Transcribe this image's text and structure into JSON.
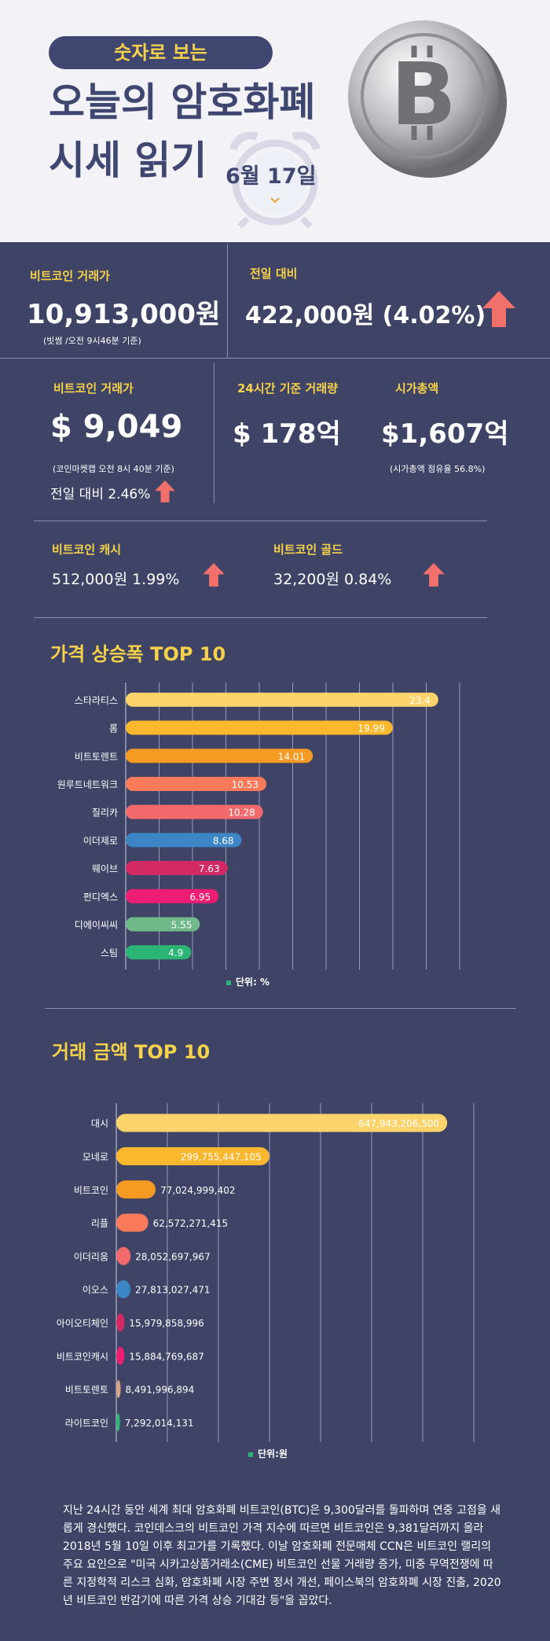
{
  "header": {
    "pill": "숫자로 보는",
    "title_line1": "오늘의 암호화폐",
    "title_line2": "시세 읽기",
    "date": "6월 17일"
  },
  "stats": {
    "krw": {
      "label": "비트코인 거래가",
      "value": "10,913,000원",
      "note": "(빗썸 /오전 9시46분 기준)"
    },
    "change": {
      "label": "전일 대비",
      "value": "422,000원 (4.02%)"
    },
    "usd": {
      "label": "비트코인 거래가",
      "value": "$ 9,049",
      "note": "(코인마켓캡 오전 8시 40분 기준)",
      "change": "전일 대비 2.46%"
    },
    "volume": {
      "label": "24시간 기준 거래량",
      "value": "$ 178억"
    },
    "cap": {
      "label": "시가총액",
      "value": "$1,607억",
      "note": "(시가총액 점유율 56.8%)"
    },
    "cash": {
      "label": "비트코인 캐시",
      "value": "512,000원  1.99%"
    },
    "gold": {
      "label": "비트코인 골드",
      "value": "32,200원  0.84%"
    }
  },
  "chart_data": [
    {
      "type": "bar",
      "title": "가격 상승폭 TOP 10",
      "orientation": "horizontal",
      "categories": [
        "스타라티스",
        "롬",
        "비트토렌트",
        "원루트네트워크",
        "질리카",
        "이더제로",
        "웨이브",
        "펀디엑스",
        "디에이씨씨",
        "스팀"
      ],
      "values": [
        23.4,
        19.99,
        14.01,
        10.53,
        10.28,
        8.68,
        7.63,
        6.95,
        5.55,
        4.9
      ],
      "value_labels": [
        "23.4",
        "19.99",
        "14.01",
        "10.53",
        "10.28",
        "8.68",
        "7.63",
        "6.95",
        "5.55",
        "4.9"
      ],
      "colors": [
        "#fdd36b",
        "#fbb82e",
        "#f59a23",
        "#fb7a5a",
        "#f36a6d",
        "#3d86c6",
        "#d42a64",
        "#ee1d74",
        "#6fb98a",
        "#2bb574"
      ],
      "unit": "단위: %",
      "xlim": [
        0,
        25
      ],
      "grid": true
    },
    {
      "type": "bar",
      "title": "거래 금액 TOP 10",
      "orientation": "horizontal",
      "categories": [
        "대시",
        "모네로",
        "비트코인",
        "리플",
        "이더리움",
        "이오스",
        "아이오티체인",
        "비트코인캐시",
        "비트토렌토",
        "라이트코인"
      ],
      "values": [
        647943206500,
        299755447105,
        77024999402,
        62572271415,
        28052697967,
        27813027471,
        15979858996,
        15884769687,
        8491996894,
        7292014131
      ],
      "value_labels": [
        "647,943,206,500",
        "299,755,447,105",
        "77,024,999,402",
        "62,572,271,415",
        "28,052,697,967",
        "27,813,027,471",
        "15,979,858,996",
        "15,884,769,687",
        "8,491,996,894",
        "7,292,014,131"
      ],
      "colors": [
        "#fdd36b",
        "#fbb82e",
        "#f59a23",
        "#fb7a5a",
        "#f36a6d",
        "#3d86c6",
        "#d42a64",
        "#ee1d74",
        "#d6a487",
        "#2bb574"
      ],
      "unit": "단위:원",
      "xlim": [
        0,
        700000000000
      ],
      "grid": true
    }
  ],
  "paragraph": "지난 24시간 동안 세계 최대 암호화폐 비트코인(BTC)은 9,300달러를 돌파하며 연중 고점을 새롭게 경신했다. 코인데스크의 비트코인 가격 지수에 따르면 비트코인은 9,381달러까지 올라 2018년 5월 10일 이후 최고가를 기록했다. 이날 암호화폐 전문매체 CCN은 비트코인 랠리의 주요 요인으로 \"미국 시카고상품거래소(CME) 비트코인 선물 거래량 증가, 미중 무역전쟁에 따른 지정학적 리스크 심화, 암호화폐 시장 주변 정서 개선, 페이스북의 암호화폐 시장 진출, 2020년 비트코인 반감기에 따른 가격 상승 기대감 등\"을 꼽았다.",
  "colors": {
    "background": "#3f4466",
    "accent": "#f6d24a",
    "arrow": "#f2706c",
    "header_bg": "#f3f3f7",
    "header_text": "#3f4670"
  }
}
